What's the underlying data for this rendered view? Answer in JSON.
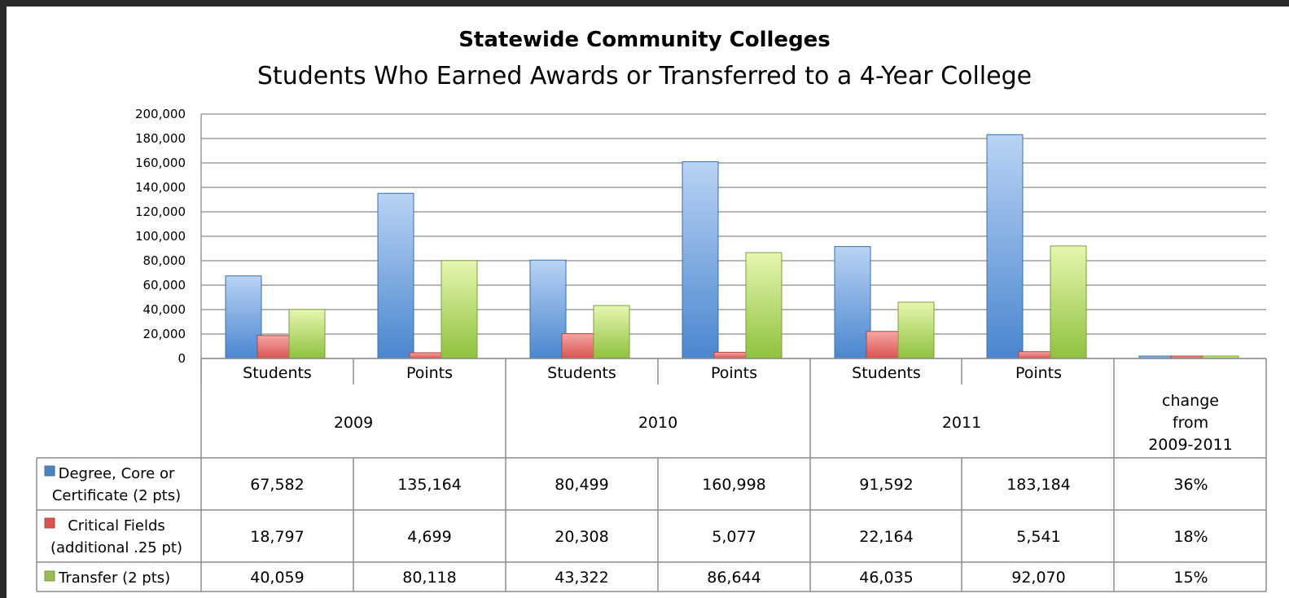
{
  "chart_data": {
    "type": "bar",
    "title": "Statewide Community Colleges",
    "subtitle": "Students Who Earned Awards or Transferred to a 4-Year College",
    "ylim": [
      0,
      200000
    ],
    "yticks": [
      "200,000",
      "180,000",
      "160,000",
      "140,000",
      "120,000",
      "100,000",
      "80,000",
      "60,000",
      "40,000",
      "20,000",
      "0"
    ],
    "categories": [
      "Students",
      "Points",
      "Students",
      "Points",
      "Students",
      "Points",
      ""
    ],
    "groups": [
      "2009",
      "2010",
      "2011",
      "change from 2009-2011"
    ],
    "change_header": [
      "change",
      "from",
      "2009-2011"
    ],
    "series": [
      {
        "name": "Degree, Core or Certificate (2 pts)",
        "name_lines": [
          "Degree, Core or",
          "Certificate (2 pts)"
        ],
        "color": "#4f81bd",
        "values": [
          67582,
          135164,
          80499,
          160998,
          91592,
          183184,
          0.36
        ],
        "labels": [
          "67,582",
          "135,164",
          "80,499",
          "160,998",
          "91,592",
          "183,184",
          "36%"
        ]
      },
      {
        "name": "Critical Fields (additional .25 pt)",
        "name_lines": [
          "Critical Fields",
          "(additional .25 pt)"
        ],
        "color": "#c0504d",
        "values": [
          18797,
          4699,
          20308,
          5077,
          22164,
          5541,
          0.18
        ],
        "labels": [
          "18,797",
          "4,699",
          "20,308",
          "5,077",
          "22,164",
          "5,541",
          "18%"
        ]
      },
      {
        "name": "Transfer (2 pts)",
        "name_lines": [
          "Transfer (2 pts)"
        ],
        "color": "#9bbb59",
        "values": [
          40059,
          80118,
          43322,
          86644,
          46035,
          92070,
          0.15
        ],
        "labels": [
          "40,059",
          "80,118",
          "43,322",
          "86,644",
          "46,035",
          "92,070",
          "15%"
        ]
      }
    ],
    "grid": true,
    "legend": "data-table"
  }
}
